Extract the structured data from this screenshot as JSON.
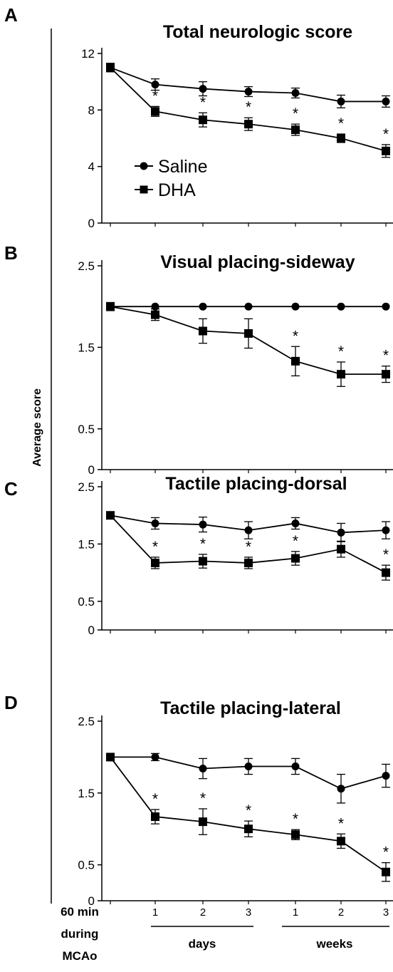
{
  "ylabel": "Average score",
  "legend": {
    "saline": "Saline",
    "dha": "DHA"
  },
  "x_axis": {
    "first_label": [
      "60 min",
      "during",
      "MCAo"
    ],
    "day_ticks": [
      "1",
      "2",
      "3"
    ],
    "week_ticks": [
      "1",
      "2",
      "3"
    ],
    "days_label": "days",
    "weeks_label": "weeks"
  },
  "chart_data": [
    {
      "type": "line",
      "panel": "A",
      "title": "Total neurologic score",
      "ylim": [
        0,
        12
      ],
      "yticks": [
        "0",
        "4",
        "8",
        "12"
      ],
      "yticks_values": [
        0,
        4,
        8,
        12
      ],
      "series": [
        {
          "name": "Saline",
          "marker": "circle",
          "values": [
            11.0,
            9.8,
            9.5,
            9.3,
            9.2,
            8.6,
            8.6
          ],
          "errors": [
            0.3,
            0.4,
            0.5,
            0.35,
            0.35,
            0.45,
            0.4
          ]
        },
        {
          "name": "DHA",
          "marker": "square",
          "values": [
            11.0,
            7.9,
            7.3,
            7.0,
            6.6,
            6.0,
            5.1
          ],
          "errors": [
            0.3,
            0.35,
            0.5,
            0.45,
            0.4,
            0.3,
            0.45
          ]
        }
      ],
      "significance": [
        false,
        true,
        true,
        true,
        true,
        true,
        true
      ]
    },
    {
      "type": "line",
      "panel": "B",
      "title": "Visual placing-sideway",
      "ylim": [
        0,
        2.5
      ],
      "yticks": [
        "0",
        "0.5",
        "1.5",
        "2.5"
      ],
      "yticks_values": [
        0,
        0.5,
        1.5,
        2.5
      ],
      "series": [
        {
          "name": "Saline",
          "marker": "circle",
          "values": [
            2.0,
            2.0,
            2.0,
            2.0,
            2.0,
            2.0,
            2.0
          ],
          "errors": [
            0,
            0,
            0,
            0,
            0,
            0,
            0
          ]
        },
        {
          "name": "DHA",
          "marker": "square",
          "values": [
            2.0,
            1.9,
            1.7,
            1.67,
            1.33,
            1.17,
            1.17
          ],
          "errors": [
            0.05,
            0.07,
            0.15,
            0.18,
            0.18,
            0.15,
            0.1
          ]
        }
      ],
      "significance": [
        false,
        false,
        false,
        false,
        true,
        true,
        true
      ]
    },
    {
      "type": "line",
      "panel": "C",
      "title": "Tactile placing-dorsal",
      "ylim": [
        0,
        2.5
      ],
      "yticks": [
        "0",
        "0.5",
        "1.5",
        "2.5"
      ],
      "yticks_values": [
        0,
        0.5,
        1.5,
        2.5
      ],
      "series": [
        {
          "name": "Saline",
          "marker": "circle",
          "values": [
            2.0,
            1.86,
            1.84,
            1.74,
            1.86,
            1.7,
            1.74
          ],
          "errors": [
            0.05,
            0.1,
            0.13,
            0.15,
            0.1,
            0.16,
            0.15
          ]
        },
        {
          "name": "DHA",
          "marker": "square",
          "values": [
            2.0,
            1.17,
            1.2,
            1.17,
            1.25,
            1.41,
            1.0
          ],
          "errors": [
            0.05,
            0.1,
            0.12,
            0.1,
            0.12,
            0.14,
            0.13
          ]
        }
      ],
      "significance": [
        false,
        true,
        true,
        true,
        true,
        false,
        true
      ]
    },
    {
      "type": "line",
      "panel": "D",
      "title": "Tactile placing-lateral",
      "ylim": [
        0,
        2.5
      ],
      "yticks": [
        "0",
        "0.5",
        "1.5",
        "2.5"
      ],
      "yticks_values": [
        0,
        0.5,
        1.5,
        2.5
      ],
      "series": [
        {
          "name": "Saline",
          "marker": "circle",
          "values": [
            2.0,
            2.0,
            1.84,
            1.87,
            1.87,
            1.56,
            1.74
          ],
          "errors": [
            0.05,
            0.05,
            0.14,
            0.11,
            0.11,
            0.2,
            0.16
          ]
        },
        {
          "name": "DHA",
          "marker": "square",
          "values": [
            2.0,
            1.17,
            1.1,
            1.0,
            0.92,
            0.83,
            0.4
          ],
          "errors": [
            0.05,
            0.1,
            0.18,
            0.11,
            0.07,
            0.1,
            0.13
          ]
        }
      ],
      "significance": [
        false,
        true,
        true,
        true,
        true,
        true,
        true
      ]
    }
  ]
}
